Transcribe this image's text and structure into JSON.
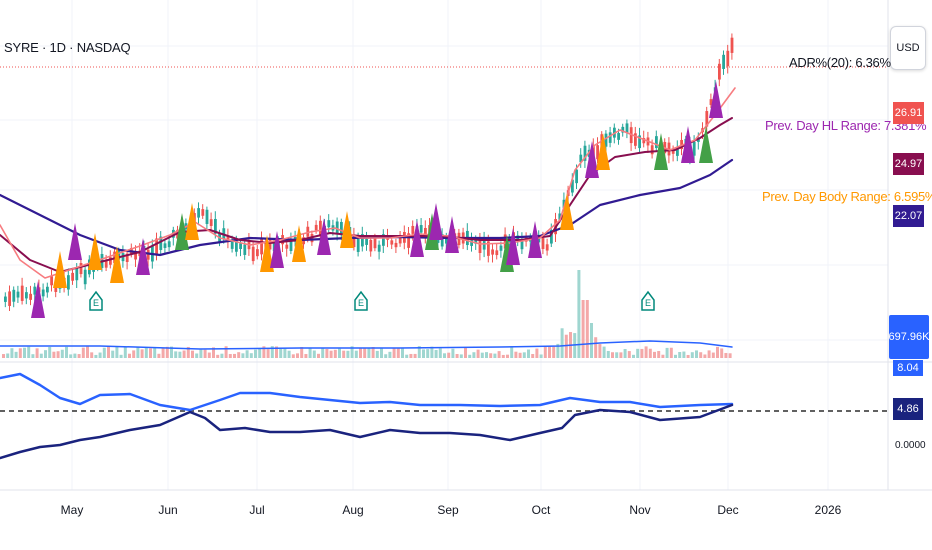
{
  "header": {
    "symbol_title": "SYRE · 1D · NASDAQ"
  },
  "toolbar": {
    "currency": "USD"
  },
  "indicators": {
    "adr": "ADR%(20): 6.36%",
    "prev_hl": "Prev. Day HL Range: 7.381%",
    "prev_body": "Prev. Day Body Range: 6.595%"
  },
  "price_scale": {
    "tags": [
      {
        "value": "26.91",
        "color": "#f05350"
      },
      {
        "value": "24.97",
        "color": "#880e4f"
      },
      {
        "value": "22.07",
        "color": "#311b92"
      }
    ],
    "volume": "697.96K"
  },
  "oscillator": {
    "top_value": "8.04",
    "mid_value": "4.86",
    "zero_value": "0.0000"
  },
  "time_axis": {
    "labels": [
      "May",
      "Jun",
      "Jul",
      "Aug",
      "Sep",
      "Oct",
      "Nov",
      "Dec",
      "2026"
    ]
  },
  "colors": {
    "up_candle": "#26a69a",
    "down_candle": "#ef5350",
    "ma_fast": "#f77c80",
    "ma_mid": "#880e4f",
    "ma_slow": "#311b92",
    "signal_purple": "#9c27b0",
    "signal_orange": "#ff9800",
    "signal_green": "#43a047",
    "volume_line": "#2962ff",
    "earnings_marker": "#00897b"
  },
  "earnings_marker_label": "E"
}
